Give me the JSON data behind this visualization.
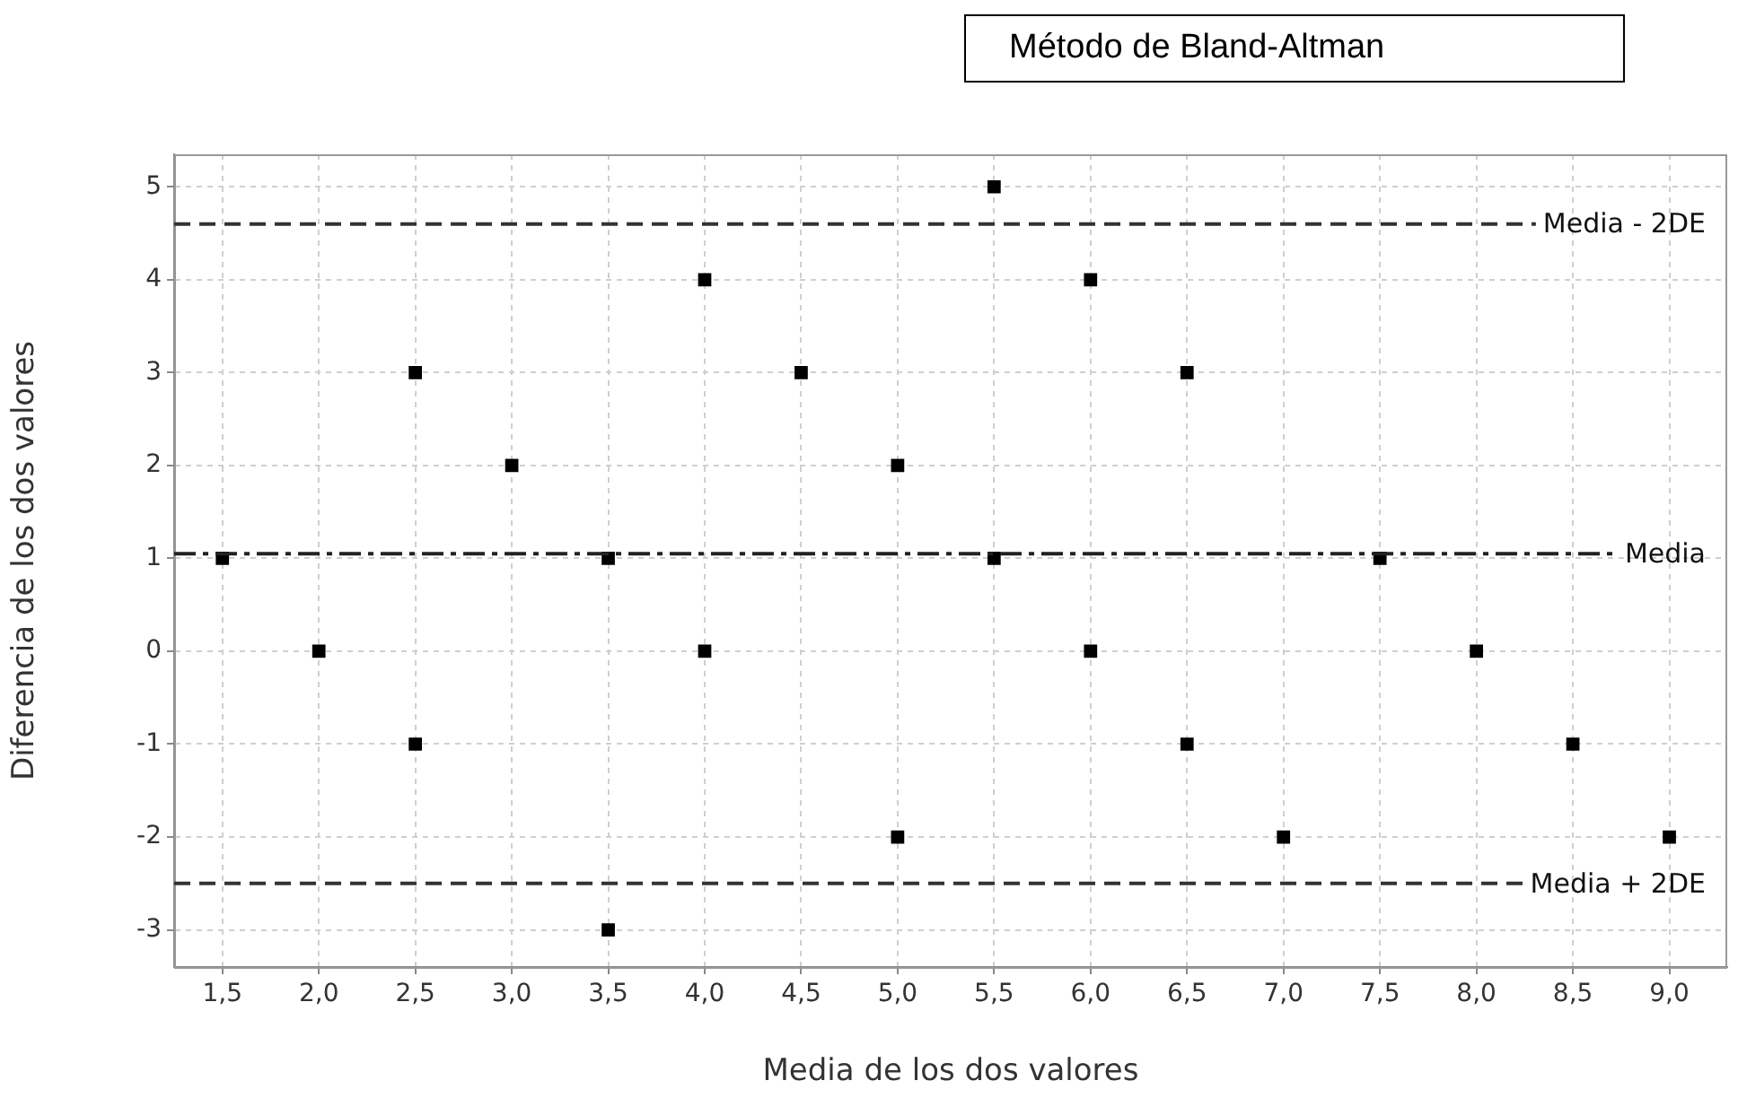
{
  "chart_data": {
    "type": "scatter",
    "title": "Método de Bland-Altman",
    "xlabel": "Media de los dos valores",
    "ylabel": "Diferencia de los dos valores",
    "x": [
      1.5,
      2,
      2.5,
      2.5,
      3,
      3.5,
      3.5,
      4,
      4,
      4.5,
      5,
      5,
      5.5,
      5.5,
      6,
      6,
      6.5,
      6.5,
      7,
      7.5,
      8,
      8.5,
      9
    ],
    "series": [
      {
        "color": "#000000",
        "values": [
          1,
          0,
          3,
          -1,
          2,
          1,
          -3,
          4,
          0,
          3,
          2,
          -2,
          5,
          1,
          4,
          0,
          3,
          -1,
          -2,
          1,
          0,
          -1,
          -2
        ]
      }
    ],
    "xlim": [
      1.25,
      9.3
    ],
    "xticks": [
      {
        "value": 1.5,
        "label": "1,5"
      },
      {
        "value": 2,
        "label": "2,0"
      },
      {
        "value": 2.5,
        "label": "2,5"
      },
      {
        "value": 3,
        "label": "3,0"
      },
      {
        "value": 3.5,
        "label": "3,5"
      },
      {
        "value": 4,
        "label": "4,0"
      },
      {
        "value": 4.5,
        "label": "4,5"
      },
      {
        "value": 5,
        "label": "5,0"
      },
      {
        "value": 5.5,
        "label": "5,5"
      },
      {
        "value": 6,
        "label": "6,0"
      },
      {
        "value": 6.5,
        "label": "6,5"
      },
      {
        "value": 7,
        "label": "7,0"
      },
      {
        "value": 7.5,
        "label": "7,5"
      },
      {
        "value": 8,
        "label": "8,0"
      },
      {
        "value": 8.5,
        "label": "8,5"
      },
      {
        "value": 9,
        "label": "9,0"
      }
    ],
    "ylim": [
      -3.4,
      5.35
    ],
    "yticks": [
      -3,
      -2,
      -1,
      0,
      1,
      2,
      3,
      4,
      5
    ],
    "ref_lines": [
      {
        "axis": "y",
        "value": 4.6,
        "label": "Media - 2DE",
        "color": "#333333",
        "line_style": "dashed"
      },
      {
        "axis": "y",
        "value": 1.05,
        "label": "Media",
        "color": "#222222",
        "line_style": "dashdot"
      },
      {
        "axis": "y",
        "value": -2.5,
        "label": "Media + 2DE",
        "color": "#333333",
        "line_style": "dashed"
      }
    ],
    "grid": true,
    "marker": "square",
    "legend": false
  }
}
